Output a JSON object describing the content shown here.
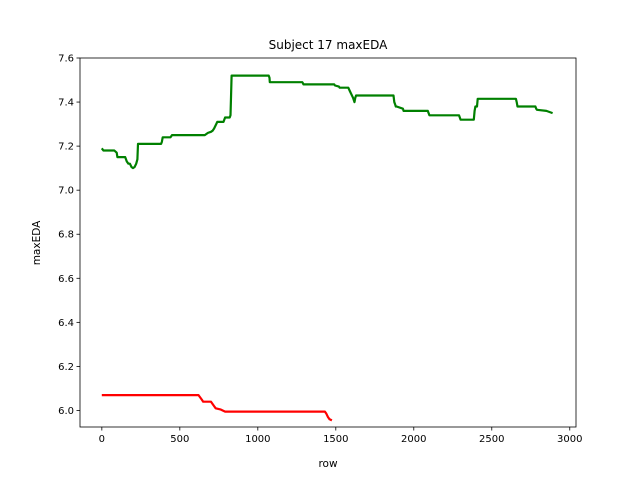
{
  "chart_data": {
    "type": "line",
    "title": "Subject 17 maxEDA",
    "xlabel": "row",
    "ylabel": "maxEDA",
    "xlim": [
      -140,
      3040
    ],
    "ylim": [
      5.925,
      7.6
    ],
    "xticks": [
      0,
      500,
      1000,
      1500,
      2000,
      2500,
      3000
    ],
    "xtick_labels": [
      "0",
      "500",
      "1000",
      "1500",
      "2000",
      "2500",
      "3000"
    ],
    "yticks": [
      6.0,
      6.2,
      6.4,
      6.6,
      6.8,
      7.0,
      7.2,
      7.4,
      7.6
    ],
    "ytick_labels": [
      "6.0",
      "6.2",
      "6.4",
      "6.6",
      "6.8",
      "7.0",
      "7.2",
      "7.4",
      "7.6"
    ],
    "grid": false,
    "series": [
      {
        "color": "#008000",
        "x": [
          0,
          10,
          80,
          95,
          100,
          150,
          160,
          170,
          180,
          190,
          200,
          210,
          220,
          228,
          232,
          380,
          385,
          390,
          440,
          450,
          655,
          660,
          680,
          700,
          710,
          720,
          740,
          755,
          780,
          790,
          820,
          825,
          828,
          832,
          838,
          1070,
          1075,
          1077,
          1285,
          1290,
          1292,
          1490,
          1495,
          1520,
          1525,
          1580,
          1590,
          1610,
          1620,
          1625,
          1630,
          1632,
          1870,
          1875,
          1880,
          1885,
          1890,
          1930,
          1935,
          2090,
          2095,
          2100,
          2290,
          2295,
          2300,
          2385,
          2390,
          2395,
          2405,
          2410,
          2655,
          2660,
          2665,
          2780,
          2785,
          2790,
          2850,
          2890
        ],
        "values": [
          7.19,
          7.18,
          7.18,
          7.17,
          7.15,
          7.15,
          7.13,
          7.12,
          7.12,
          7.105,
          7.1,
          7.105,
          7.12,
          7.14,
          7.21,
          7.21,
          7.22,
          7.24,
          7.24,
          7.25,
          7.25,
          7.25,
          7.26,
          7.265,
          7.27,
          7.28,
          7.31,
          7.31,
          7.31,
          7.33,
          7.33,
          7.34,
          7.42,
          7.52,
          7.52,
          7.52,
          7.51,
          7.49,
          7.49,
          7.485,
          7.48,
          7.48,
          7.475,
          7.47,
          7.465,
          7.465,
          7.45,
          7.42,
          7.4,
          7.42,
          7.43,
          7.43,
          7.43,
          7.4,
          7.39,
          7.38,
          7.38,
          7.37,
          7.36,
          7.36,
          7.35,
          7.34,
          7.34,
          7.33,
          7.32,
          7.32,
          7.36,
          7.38,
          7.38,
          7.415,
          7.415,
          7.4,
          7.38,
          7.38,
          7.37,
          7.365,
          7.36,
          7.35
        ]
      },
      {
        "color": "#ff0000",
        "x": [
          0,
          620,
          640,
          650,
          700,
          720,
          730,
          760,
          775,
          790,
          800,
          1430,
          1440,
          1450,
          1460,
          1475
        ],
        "values": [
          6.07,
          6.07,
          6.05,
          6.04,
          6.04,
          6.02,
          6.01,
          6.005,
          6.0,
          5.995,
          5.995,
          5.995,
          5.985,
          5.97,
          5.96,
          5.955
        ]
      }
    ]
  }
}
